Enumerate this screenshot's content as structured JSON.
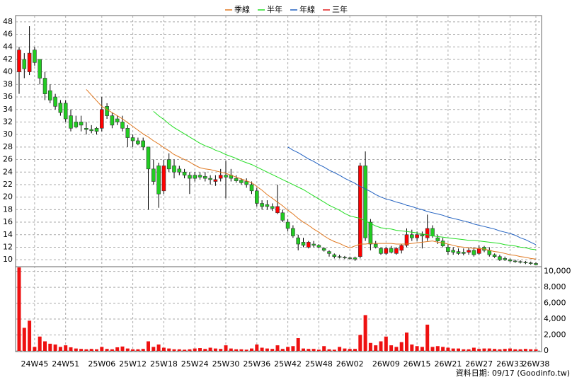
{
  "chart_data": {
    "type": "candlestick",
    "categories": [
      null,
      null,
      null,
      "24W45",
      null,
      null,
      null,
      null,
      null,
      "24W51",
      null,
      null,
      null,
      null,
      null,
      null,
      "25W06",
      null,
      null,
      null,
      null,
      null,
      "25W12",
      null,
      null,
      null,
      null,
      null,
      "25W18",
      null,
      null,
      null,
      null,
      null,
      "25W24",
      null,
      null,
      null,
      null,
      null,
      "25W30",
      null,
      null,
      null,
      null,
      null,
      "25W36",
      null,
      null,
      null,
      null,
      null,
      "25W42",
      null,
      null,
      null,
      null,
      null,
      "25W48",
      null,
      null,
      null,
      null,
      null,
      "26W02",
      null,
      null,
      null,
      null,
      null,
      null,
      "26W09",
      null,
      null,
      null,
      null,
      null,
      "26W15",
      null,
      null,
      null,
      null,
      null,
      "26W21",
      null,
      null,
      null,
      null,
      null,
      "26W27",
      null,
      null,
      null,
      null,
      null,
      "26W33",
      null,
      null,
      null,
      null,
      "26W38"
    ],
    "open": [
      40,
      42,
      40,
      43.5,
      42,
      39,
      37,
      36,
      35,
      35,
      33,
      32,
      32,
      31,
      30.8,
      31,
      31,
      34.5,
      33,
      32.5,
      32,
      31,
      29.5,
      29,
      29,
      28,
      24.5,
      25,
      21,
      26,
      25,
      24.5,
      24,
      23.5,
      23.5,
      23.5,
      23.3,
      23,
      22.5,
      23,
      23.5,
      23.5,
      23,
      22.7,
      22.5,
      22,
      21,
      19,
      18.8,
      18.5,
      17.5,
      17.5,
      16,
      15,
      13.5,
      12.8,
      12,
      12.5,
      12.3,
      11.8,
      11.3,
      10.8,
      10.5,
      10.4,
      10.3,
      10.3,
      10.5,
      25,
      16,
      12.5,
      11.8,
      11,
      11.8,
      11,
      11.5,
      12.3,
      14,
      13.5,
      14,
      13.5,
      15,
      13.5,
      13,
      12,
      11.5,
      11.3,
      11.2,
      11.2,
      11.5,
      11,
      12,
      11.5,
      10.8,
      10.5,
      10.2,
      10,
      9.8,
      9.7,
      9.6,
      9.5,
      9.4
    ],
    "high": [
      44,
      43,
      47.3,
      44,
      42,
      40,
      38,
      36.5,
      35.5,
      35.5,
      34,
      33,
      33,
      32,
      31.5,
      31.2,
      36,
      35,
      33.5,
      33,
      33,
      31.5,
      30,
      29.5,
      29.5,
      28,
      26,
      25.5,
      26,
      27,
      26,
      25,
      24.5,
      24,
      24,
      24,
      24,
      23.5,
      23.5,
      24.5,
      25.8,
      24.5,
      23.5,
      23,
      23,
      22.5,
      21.5,
      19.5,
      19.5,
      19,
      22,
      18,
      16.5,
      15.5,
      14,
      13.5,
      13,
      13,
      12.5,
      12,
      11.5,
      11,
      10.8,
      10.6,
      10.5,
      10.5,
      25.5,
      27.3,
      16.5,
      13,
      12,
      12,
      12.2,
      12,
      12.5,
      15,
      14.8,
      14.5,
      14.5,
      17.2,
      15.5,
      14,
      13.5,
      12.5,
      12,
      11.8,
      11.8,
      12,
      12,
      12.3,
      12.2,
      12,
      11,
      10.8,
      10.5,
      10.2,
      10,
      9.9,
      9.8,
      9.7,
      9.6
    ],
    "low": [
      36.5,
      39,
      39.5,
      41,
      38,
      35.5,
      35,
      34,
      33,
      32,
      30.5,
      31,
      30.5,
      30,
      30.2,
      30,
      30.5,
      32.5,
      31,
      31.5,
      30.5,
      28,
      28,
      28.3,
      27.5,
      18,
      22,
      18.3,
      20.5,
      24,
      23,
      23.5,
      23,
      20.5,
      22.5,
      22.8,
      22.5,
      22,
      21.8,
      22.5,
      19.8,
      22.5,
      22.3,
      22,
      21.5,
      20.5,
      18.5,
      18,
      18,
      17.8,
      17.3,
      16,
      14.5,
      13.5,
      11.5,
      12,
      11.8,
      12,
      11.8,
      11.3,
      10.5,
      10.2,
      10.2,
      10.1,
      10,
      9.8,
      10.2,
      13,
      11.5,
      11.8,
      10.8,
      10.8,
      11,
      10.8,
      11,
      12,
      13,
      13,
      11.8,
      13,
      13.5,
      12.5,
      12,
      10.8,
      10.8,
      10.8,
      10.7,
      10.8,
      10.5,
      10.8,
      11.2,
      10.5,
      10.3,
      9.8,
      9.8,
      9.6,
      9.5,
      9.4,
      9.3,
      9.2,
      9.1
    ],
    "close": [
      43.5,
      40.5,
      43,
      41.5,
      39,
      36.5,
      35.5,
      34.5,
      33.5,
      32.5,
      31,
      31.2,
      31.5,
      30.8,
      30.6,
      30.5,
      34,
      33,
      31.5,
      32,
      31,
      29.5,
      29,
      28.5,
      28,
      24.5,
      22.5,
      20.5,
      25,
      24.5,
      24,
      24,
      23.5,
      23,
      23,
      23.2,
      23,
      22.8,
      22.8,
      23.5,
      23.2,
      23,
      22.6,
      22.3,
      22,
      21,
      19,
      18.5,
      18.5,
      18.2,
      18.5,
      16.3,
      15,
      13.8,
      12.5,
      12.3,
      12.8,
      12.3,
      12,
      11.5,
      11,
      10.5,
      10.4,
      10.3,
      10.2,
      10.1,
      25,
      13.5,
      12.5,
      12,
      11,
      11.8,
      11.2,
      11.8,
      12.3,
      14,
      13.5,
      14,
      13.8,
      15,
      13.8,
      13,
      12.2,
      11.3,
      11.2,
      11,
      11,
      11.5,
      10.8,
      11.8,
      11.5,
      10.8,
      10.5,
      10,
      10,
      9.8,
      9.7,
      9.6,
      9.5,
      9.4,
      9.2
    ],
    "up_color": "#ff0000",
    "down_color": "#22cc22",
    "series": [
      {
        "name": "季線",
        "color": "#e07820",
        "values": [
          null,
          null,
          null,
          null,
          null,
          null,
          null,
          null,
          null,
          null,
          null,
          null,
          null,
          37.2,
          36.3,
          35.4,
          34.5,
          34,
          33.5,
          33,
          32.5,
          31.9,
          31.3,
          30.7,
          30.1,
          29.6,
          29,
          28.5,
          27.9,
          27.4,
          26.8,
          26.4,
          26,
          25.6,
          25.1,
          24.7,
          24.5,
          24.4,
          24.2,
          24,
          23.8,
          23.5,
          23.2,
          22.9,
          22.6,
          22.3,
          21.7,
          21.1,
          20.4,
          19.8,
          19.2,
          18.6,
          17.9,
          17.3,
          16.6,
          16,
          15.5,
          14.9,
          14.4,
          13.8,
          13.3,
          12.9,
          12.6,
          12.2,
          11.9,
          12.2,
          12.5,
          12.5,
          12.6,
          12.6,
          12.6,
          12.6,
          12.6,
          12.5,
          12.5,
          12.5,
          12.6,
          12.7,
          12.8,
          12.9,
          13,
          12.8,
          12.7,
          12.5,
          12.3,
          12.1,
          12,
          11.9,
          11.8,
          11.8,
          11.7,
          11.5,
          11.3,
          11.2,
          11,
          10.8,
          10.7,
          10.5,
          10.4,
          10.2,
          10.1
        ]
      },
      {
        "name": "半年",
        "color": "#22dd22",
        "values": [
          null,
          null,
          null,
          null,
          null,
          null,
          null,
          null,
          null,
          null,
          null,
          null,
          null,
          null,
          null,
          null,
          null,
          null,
          null,
          null,
          null,
          null,
          null,
          null,
          null,
          null,
          33.7,
          33,
          32.4,
          31.7,
          31.1,
          30.6,
          30.1,
          29.6,
          29.1,
          28.6,
          28.2,
          27.9,
          27.5,
          27.2,
          26.8,
          26.5,
          26.2,
          25.8,
          25.5,
          25.2,
          24.8,
          24.4,
          24,
          23.6,
          23.2,
          22.8,
          22.4,
          22,
          21.6,
          21.2,
          20.7,
          20.2,
          19.7,
          19.2,
          18.7,
          18.3,
          17.9,
          17.4,
          17,
          16.8,
          16.6,
          16.2,
          15.8,
          15.4,
          15.1,
          15,
          14.9,
          14.7,
          14.6,
          14.5,
          14.4,
          14.3,
          14.1,
          14,
          13.8,
          13.7,
          13.6,
          13.5,
          13.4,
          13.3,
          13.2,
          13.1,
          13.1,
          13,
          12.9,
          12.8,
          12.7,
          12.6,
          12.4,
          12.3,
          12.2,
          12,
          11.9,
          11.7,
          11.6
        ]
      },
      {
        "name": "年線",
        "color": "#2060c0",
        "values": [
          null,
          null,
          null,
          null,
          null,
          null,
          null,
          null,
          null,
          null,
          null,
          null,
          null,
          null,
          null,
          null,
          null,
          null,
          null,
          null,
          null,
          null,
          null,
          null,
          null,
          null,
          null,
          null,
          null,
          null,
          null,
          null,
          null,
          null,
          null,
          null,
          null,
          null,
          null,
          null,
          null,
          null,
          null,
          null,
          null,
          null,
          null,
          null,
          null,
          null,
          null,
          null,
          28,
          27.5,
          27.1,
          26.6,
          26.1,
          25.7,
          25.2,
          24.8,
          24.3,
          23.9,
          23.5,
          23,
          22.6,
          22.2,
          21.7,
          21.3,
          20.9,
          20.4,
          20,
          19.7,
          19.5,
          19.2,
          19,
          18.7,
          18.5,
          18.2,
          18,
          17.7,
          17.5,
          17.3,
          17.1,
          16.8,
          16.6,
          16.4,
          16.2,
          16,
          15.7,
          15.5,
          15.3,
          15.1,
          14.9,
          14.6,
          14.4,
          14.2,
          13.9,
          13.5,
          13.2,
          12.8,
          12.4
        ]
      },
      {
        "name": "三年",
        "color": "#e02020",
        "values": [
          null,
          null,
          null,
          null,
          null,
          null,
          null,
          null,
          null,
          null,
          null,
          null,
          null,
          null,
          null,
          null,
          null,
          null,
          null,
          null,
          null,
          null,
          null,
          null,
          null,
          null,
          null,
          null,
          null,
          null,
          null,
          null,
          null,
          null,
          null,
          null,
          null,
          null,
          null,
          null,
          null,
          null,
          null,
          null,
          null,
          null,
          null,
          null,
          null,
          null,
          null,
          null,
          null,
          null,
          null,
          null,
          null,
          null,
          null,
          null,
          null,
          null,
          null,
          null,
          null,
          null,
          null,
          null,
          null,
          null,
          null,
          null,
          null,
          null,
          null,
          null,
          null,
          null,
          null,
          null,
          null,
          null,
          null,
          null,
          null,
          null,
          null,
          null,
          null,
          null,
          null,
          null,
          null,
          null,
          null,
          null,
          null,
          null,
          null,
          null,
          null
        ]
      }
    ],
    "ylim": [
      9,
      49
    ],
    "yticks": [
      10,
      12,
      14,
      16,
      18,
      20,
      22,
      24,
      26,
      28,
      30,
      32,
      34,
      36,
      38,
      40,
      42,
      44,
      46,
      48
    ],
    "grid": true,
    "legend": "top",
    "volume": {
      "color": "#ee1111",
      "values": [
        10500,
        2900,
        3800,
        500,
        1800,
        1200,
        900,
        800,
        500,
        700,
        450,
        300,
        250,
        200,
        250,
        200,
        500,
        250,
        200,
        450,
        550,
        300,
        200,
        200,
        250,
        1200,
        500,
        800,
        400,
        300,
        200,
        200,
        150,
        200,
        300,
        350,
        250,
        400,
        300,
        250,
        700,
        300,
        200,
        200,
        150,
        300,
        800,
        400,
        300,
        250,
        700,
        250,
        500,
        600,
        1600,
        300,
        250,
        250,
        150,
        600,
        200,
        150,
        500,
        300,
        250,
        250,
        2000,
        4500,
        1000,
        700,
        1200,
        1800,
        700,
        500,
        1100,
        2300,
        800,
        600,
        500,
        3300,
        500,
        600,
        500,
        400,
        300,
        300,
        200,
        200,
        400,
        250,
        300,
        300,
        250,
        200,
        250,
        300,
        200,
        200,
        250,
        200,
        200
      ],
      "ylim": [
        0,
        10500
      ],
      "yticks": [
        0,
        {
          "value": 2000,
          "label": "2,000"
        },
        {
          "value": 4000,
          "label": "4,000"
        },
        {
          "value": 6000,
          "label": "6,000"
        },
        {
          "value": 8000,
          "label": "8,000"
        },
        {
          "value": 10000,
          "label": "10,000"
        }
      ]
    },
    "footnote": "資料日期: 09/17 (Goodinfo.tw)"
  }
}
